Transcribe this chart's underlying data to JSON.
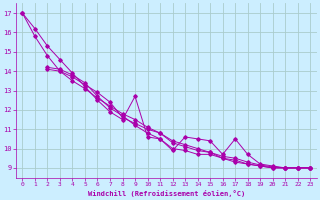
{
  "background_color": "#cceeff",
  "grid_color": "#aacccc",
  "line_color": "#aa00aa",
  "xlabel": "Windchill (Refroidissement éolien,°C)",
  "xlim": [
    -0.5,
    23.5
  ],
  "ylim": [
    8.5,
    17.5
  ],
  "yticks": [
    9,
    10,
    11,
    12,
    13,
    14,
    15,
    16,
    17
  ],
  "xticks": [
    0,
    1,
    2,
    3,
    4,
    5,
    6,
    7,
    8,
    9,
    10,
    11,
    12,
    13,
    14,
    15,
    16,
    17,
    18,
    19,
    20,
    21,
    22,
    23
  ],
  "series": {
    "line1_x": [
      0,
      1,
      2,
      3,
      4,
      5,
      6,
      7,
      8,
      9,
      10,
      11,
      12,
      13,
      14,
      15,
      16,
      17,
      18,
      19,
      20,
      21,
      22,
      23
    ],
    "line1_y": [
      17.0,
      16.2,
      15.3,
      14.6,
      13.9,
      13.2,
      12.5,
      11.9,
      11.5,
      12.7,
      10.6,
      10.5,
      9.9,
      10.6,
      10.5,
      10.4,
      9.7,
      10.5,
      9.7,
      9.2,
      9.1,
      9.0,
      9.0,
      9.0
    ],
    "line2_x": [
      2,
      3,
      4,
      5,
      6,
      7,
      8,
      9,
      10,
      11,
      12,
      13,
      14,
      15,
      16,
      17,
      18,
      19,
      20,
      21,
      22,
      23
    ],
    "line2_y": [
      14.1,
      14.0,
      13.7,
      13.3,
      12.9,
      12.4,
      11.6,
      11.3,
      11.0,
      10.8,
      10.3,
      10.1,
      9.9,
      9.8,
      9.5,
      9.4,
      9.2,
      9.1,
      9.0,
      9.0,
      9.0,
      9.0
    ],
    "line3_x": [
      0,
      1,
      2,
      3,
      4,
      5,
      6,
      7,
      8,
      9,
      10,
      11,
      12,
      13,
      14,
      15,
      16,
      17,
      18,
      19,
      20,
      21,
      22,
      23
    ],
    "line3_y": [
      17.0,
      15.8,
      14.8,
      14.0,
      13.5,
      13.1,
      12.6,
      12.2,
      11.8,
      11.5,
      11.1,
      10.8,
      10.4,
      10.2,
      10.0,
      9.8,
      9.6,
      9.5,
      9.3,
      9.15,
      9.05,
      9.0,
      9.0,
      9.0
    ],
    "line4_x": [
      2,
      3,
      4,
      5,
      6,
      7,
      8,
      9,
      10,
      11,
      12,
      13,
      14,
      15,
      16,
      17,
      18,
      19,
      20,
      21,
      22,
      23
    ],
    "line4_y": [
      14.2,
      14.1,
      13.8,
      13.4,
      12.7,
      12.1,
      11.7,
      11.2,
      10.8,
      10.5,
      10.0,
      9.9,
      9.7,
      9.7,
      9.5,
      9.3,
      9.2,
      9.1,
      9.0,
      9.0,
      9.0,
      9.0
    ]
  }
}
